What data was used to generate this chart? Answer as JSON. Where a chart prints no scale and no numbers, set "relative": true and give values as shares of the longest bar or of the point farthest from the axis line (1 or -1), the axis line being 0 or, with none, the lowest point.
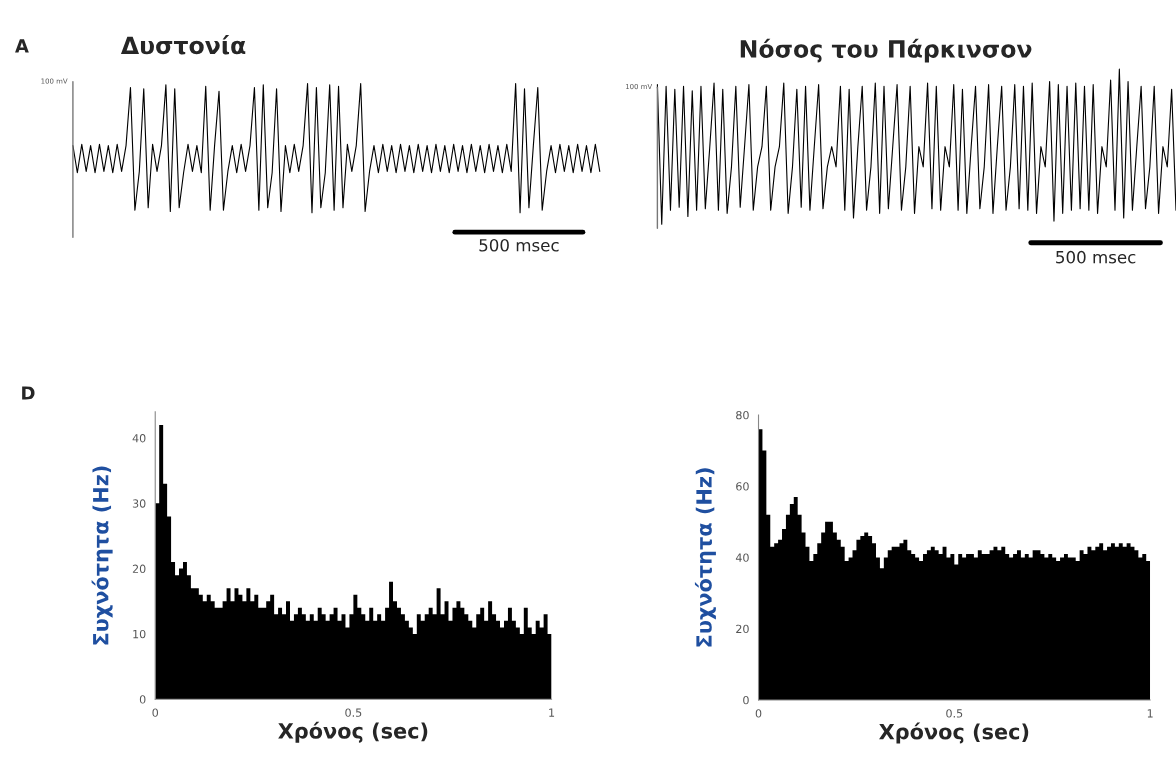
{
  "chart_data": [
    {
      "type": "line",
      "title": "Δυστονία",
      "relative": true,
      "color": "#000000",
      "annotations": [
        "A",
        "100 mV",
        "500 msec"
      ],
      "categories": [
        null,
        null,
        null,
        null,
        null,
        null,
        null,
        null,
        null,
        null,
        null,
        null,
        null,
        null,
        null,
        null,
        null,
        null,
        null,
        null,
        null,
        null,
        null,
        null,
        null,
        null,
        null,
        null,
        null,
        null,
        null,
        null,
        null,
        null,
        null,
        null,
        null,
        null,
        null,
        null,
        null,
        null,
        null,
        null,
        null,
        null,
        null,
        null,
        null,
        null,
        null,
        null,
        null,
        null,
        null,
        null,
        null,
        null,
        null,
        null,
        null,
        null,
        null,
        null,
        null,
        null,
        null,
        null,
        null,
        null,
        null,
        null,
        null,
        null,
        null,
        null,
        null,
        null,
        null,
        null,
        null,
        null,
        null,
        null,
        null,
        null,
        null,
        null,
        null,
        null,
        null,
        null,
        null,
        null,
        null,
        null,
        null,
        null,
        null,
        null,
        null,
        null,
        null,
        null,
        null,
        null,
        null,
        null,
        null,
        null,
        null,
        null,
        null,
        null,
        null,
        null,
        null,
        null,
        null,
        null
      ],
      "values": [
        0.52,
        0.31,
        0.53,
        0.32,
        0.52,
        0.31,
        0.53,
        0.32,
        0.52,
        0.31,
        0.53,
        0.32,
        0.52,
        0.97,
        0.02,
        0.32,
        0.96,
        0.04,
        0.53,
        0.32,
        0.52,
        0.99,
        0.01,
        0.96,
        0.04,
        0.31,
        0.53,
        0.32,
        0.52,
        0.31,
        0.98,
        0.02,
        0.52,
        0.94,
        0.02,
        0.32,
        0.52,
        0.31,
        0.53,
        0.32,
        0.52,
        0.97,
        0.02,
        0.99,
        0.04,
        0.31,
        0.96,
        0.01,
        0.52,
        0.31,
        0.53,
        0.32,
        0.52,
        1.0,
        0,
        0.97,
        0.04,
        0.31,
        0.99,
        0.02,
        0.98,
        0.04,
        0.53,
        0.32,
        0.52,
        1.0,
        0.01,
        0.32,
        0.52,
        0.31,
        0.53,
        0.32,
        0.52,
        0.31,
        0.53,
        0.32,
        0.52,
        0.31,
        0.53,
        0.32,
        0.52,
        0.31,
        0.53,
        0.32,
        0.52,
        0.31,
        0.53,
        0.32,
        0.52,
        0.31,
        0.53,
        0.32,
        0.52,
        0.31,
        0.53,
        0.32,
        0.52,
        0.31,
        0.53,
        0.32,
        1.0,
        0,
        0.96,
        0.04,
        0.52,
        0.97,
        0.02,
        0.32,
        0.52,
        0.31,
        0.53,
        0.32,
        0.52,
        0.31,
        0.53,
        0.32,
        0.52,
        0.31,
        0.53,
        0.32
      ]
    },
    {
      "type": "line",
      "title": "Νόσος του Πάρκινσον",
      "relative": true,
      "color": "#000000",
      "annotations": [
        "100 mV",
        "500 msec"
      ],
      "categories": [
        null,
        null,
        null,
        null,
        null,
        null,
        null,
        null,
        null,
        null,
        null,
        null,
        null,
        null,
        null,
        null,
        null,
        null,
        null,
        null,
        null,
        null,
        null,
        null,
        null,
        null,
        null,
        null,
        null,
        null,
        null,
        null,
        null,
        null,
        null,
        null,
        null,
        null,
        null,
        null,
        null,
        null,
        null,
        null,
        null,
        null,
        null,
        null,
        null,
        null,
        null,
        null,
        null,
        null,
        null,
        null,
        null,
        null,
        null,
        null,
        null,
        null,
        null,
        null,
        null,
        null,
        null,
        null,
        null,
        null,
        null,
        null,
        null,
        null,
        null,
        null,
        null,
        null,
        null,
        null,
        null,
        null,
        null,
        null,
        null,
        null,
        null,
        null,
        null,
        null,
        null,
        null,
        null,
        null,
        null,
        null,
        null,
        null,
        null,
        null,
        null,
        null,
        null,
        null,
        null,
        null,
        null,
        null,
        null,
        null,
        null,
        null,
        null,
        null,
        null,
        null,
        null,
        null,
        null,
        null
      ],
      "values": [
        0.9,
        0,
        0.89,
        0.09,
        0.87,
        0.11,
        0.89,
        0.05,
        0.86,
        0.09,
        0.89,
        0.1,
        0.49,
        0.91,
        0.09,
        0.87,
        0.07,
        0.37,
        0.89,
        0.11,
        0.5,
        0.9,
        0.09,
        0.37,
        0.5,
        0.89,
        0.09,
        0.37,
        0.5,
        0.91,
        0.07,
        0.37,
        0.87,
        0.11,
        0.89,
        0.09,
        0.5,
        0.9,
        0.1,
        0.37,
        0.5,
        0.37,
        0.89,
        0.09,
        0.87,
        0.04,
        0.5,
        0.89,
        0.09,
        0.37,
        0.91,
        0.07,
        0.89,
        0.1,
        0.5,
        0.9,
        0.09,
        0.37,
        0.89,
        0.07,
        0.5,
        0.37,
        0.91,
        0.1,
        0.89,
        0.09,
        0.5,
        0.37,
        0.9,
        0.09,
        0.87,
        0.07,
        0.5,
        0.89,
        0.1,
        0.37,
        0.9,
        0.07,
        0.5,
        0.89,
        0.09,
        0.37,
        0.9,
        0.1,
        0.89,
        0.09,
        0.91,
        0.07,
        0.5,
        0.37,
        0.92,
        0.02,
        0.9,
        0.07,
        0.89,
        0.09,
        0.91,
        0.1,
        0.89,
        0.09,
        0.9,
        0.07,
        0.5,
        0.37,
        0.93,
        0.09,
        1.0,
        0.04,
        0.92,
        0.09,
        0.5,
        0.89,
        0.1,
        0.37,
        0.89,
        0.07,
        0.5,
        0.37,
        0.87,
        0.09
      ]
    },
    {
      "type": "histogram",
      "xlabel": "Χρόνος (sec)",
      "ylabel": "Συχνότητα (Hz)",
      "color": "#000000",
      "annotations": [
        "D"
      ],
      "xlim": [
        0,
        1
      ],
      "xticks": [
        0,
        0.5,
        1
      ],
      "ylim": [
        0,
        44
      ],
      "yticks": [
        0,
        10,
        20,
        30,
        40
      ],
      "bins": [
        0,
        0.01,
        0.02,
        0.03,
        0.04,
        0.05,
        0.06,
        0.07,
        0.08,
        0.09,
        0.1,
        0.11,
        0.12,
        0.13,
        0.14,
        0.15,
        0.16,
        0.17,
        0.18,
        0.19,
        0.2,
        0.21,
        0.22,
        0.23,
        0.24,
        0.25,
        0.26,
        0.27,
        0.28,
        0.29,
        0.3,
        0.31,
        0.32,
        0.33,
        0.34,
        0.35,
        0.36,
        0.37,
        0.38,
        0.39,
        0.4,
        0.41,
        0.42,
        0.43,
        0.44,
        0.45,
        0.46,
        0.47,
        0.48,
        0.49,
        0.5,
        0.51,
        0.52,
        0.53,
        0.54,
        0.55,
        0.56,
        0.57,
        0.58,
        0.59,
        0.6,
        0.61,
        0.62,
        0.63,
        0.64,
        0.65,
        0.66,
        0.67,
        0.68,
        0.69,
        0.7,
        0.71,
        0.72,
        0.73,
        0.74,
        0.75,
        0.76,
        0.77,
        0.78,
        0.79,
        0.8,
        0.81,
        0.82,
        0.83,
        0.84,
        0.85,
        0.86,
        0.87,
        0.88,
        0.89,
        0.9,
        0.91,
        0.92,
        0.93,
        0.94,
        0.95,
        0.96,
        0.97,
        0.98,
        0.99,
        1
      ],
      "values": [
        30,
        42,
        33,
        28,
        21,
        19,
        20,
        21,
        19,
        17,
        17,
        16,
        15,
        16,
        15,
        14,
        14,
        15,
        17,
        15,
        17,
        16,
        15,
        17,
        15,
        16,
        14,
        14,
        15,
        16,
        13,
        14,
        13,
        15,
        12,
        13,
        14,
        13,
        12,
        13,
        12,
        14,
        13,
        12,
        13,
        14,
        12,
        13,
        11,
        13,
        16,
        14,
        13,
        12,
        14,
        12,
        13,
        12,
        14,
        18,
        15,
        14,
        13,
        12,
        11,
        10,
        13,
        12,
        13,
        14,
        13,
        17,
        13,
        15,
        12,
        14,
        15,
        14,
        13,
        12,
        11,
        13,
        14,
        12,
        15,
        13,
        12,
        11,
        12,
        14,
        12,
        11,
        10,
        14,
        11,
        10,
        12,
        11,
        13,
        10
      ]
    },
    {
      "type": "histogram",
      "xlabel": "Χρόνος (sec)",
      "ylabel": "Συχνότητα (Hz)",
      "color": "#000000",
      "xlim": [
        0,
        1
      ],
      "xticks": [
        0,
        0.5,
        1
      ],
      "ylim": [
        0,
        80
      ],
      "yticks": [
        0,
        20,
        40,
        60,
        80
      ],
      "bins": [
        0,
        0.01,
        0.02,
        0.03,
        0.04,
        0.05,
        0.06,
        0.07,
        0.08,
        0.09,
        0.1,
        0.11,
        0.12,
        0.13,
        0.14,
        0.15,
        0.16,
        0.17,
        0.18,
        0.19,
        0.2,
        0.21,
        0.22,
        0.23,
        0.24,
        0.25,
        0.26,
        0.27,
        0.28,
        0.29,
        0.3,
        0.31,
        0.32,
        0.33,
        0.34,
        0.35,
        0.36,
        0.37,
        0.38,
        0.39,
        0.4,
        0.41,
        0.42,
        0.43,
        0.44,
        0.45,
        0.46,
        0.47,
        0.48,
        0.49,
        0.5,
        0.51,
        0.52,
        0.53,
        0.54,
        0.55,
        0.56,
        0.57,
        0.58,
        0.59,
        0.6,
        0.61,
        0.62,
        0.63,
        0.64,
        0.65,
        0.66,
        0.67,
        0.68,
        0.69,
        0.7,
        0.71,
        0.72,
        0.73,
        0.74,
        0.75,
        0.76,
        0.77,
        0.78,
        0.79,
        0.8,
        0.81,
        0.82,
        0.83,
        0.84,
        0.85,
        0.86,
        0.87,
        0.88,
        0.89,
        0.9,
        0.91,
        0.92,
        0.93,
        0.94,
        0.95,
        0.96,
        0.97,
        0.98,
        0.99,
        1
      ],
      "values": [
        76,
        70,
        52,
        43,
        44,
        45,
        48,
        52,
        55,
        57,
        52,
        47,
        43,
        39,
        41,
        44,
        47,
        50,
        50,
        47,
        45,
        43,
        39,
        40,
        42,
        45,
        46,
        47,
        46,
        44,
        40,
        37,
        40,
        42,
        43,
        43,
        44,
        45,
        42,
        41,
        40,
        39,
        41,
        42,
        43,
        42,
        41,
        43,
        40,
        41,
        38,
        41,
        40,
        41,
        41,
        40,
        42,
        41,
        41,
        42,
        43,
        42,
        43,
        41,
        40,
        41,
        42,
        40,
        41,
        40,
        42,
        42,
        41,
        40,
        41,
        40,
        39,
        40,
        41,
        40,
        40,
        39,
        42,
        41,
        43,
        42,
        43,
        44,
        42,
        43,
        44,
        43,
        44,
        43,
        44,
        43,
        42,
        40,
        41,
        39
      ]
    }
  ]
}
